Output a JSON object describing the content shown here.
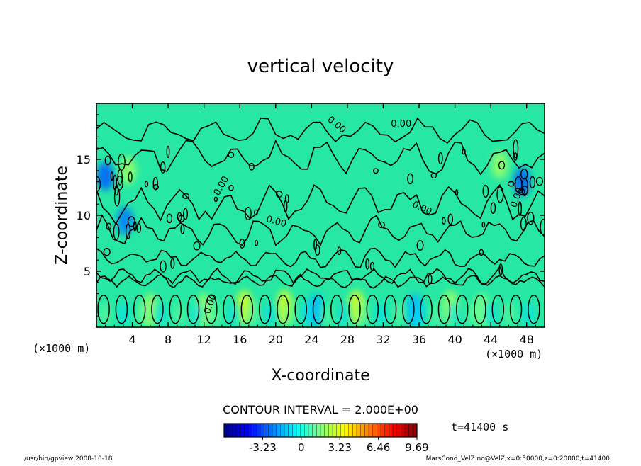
{
  "chart_data": {
    "type": "heatmap",
    "title": "vertical velocity",
    "xlabel": "X-coordinate",
    "ylabel": "Z-coordinate",
    "x_unit": "(×1000 m)",
    "y_unit": "(×1000 m)",
    "xlim": [
      0,
      50
    ],
    "ylim": [
      0,
      20
    ],
    "x_ticks": [
      4,
      8,
      12,
      16,
      20,
      24,
      28,
      32,
      36,
      40,
      44,
      48
    ],
    "y_ticks": [
      5,
      10,
      15
    ],
    "contour_interval_text": "CONTOUR INTERVAL = 2.000E+00",
    "contour_labels": [
      "0.00",
      "0.00",
      "0.00",
      "0.00",
      "0.00",
      "0.00",
      "0.00"
    ],
    "colorbar": {
      "min": -6.46,
      "max": 9.69,
      "tick_values": [
        -3.23,
        0,
        3.23,
        6.46,
        9.69
      ],
      "tick_labels": [
        "-3.23",
        "0",
        "3.23",
        "6.46",
        "9.69"
      ]
    },
    "time_text": "t=41400 s",
    "footer_left": "/usr/bin/gpview  2008-10-18",
    "footer_right": "MarsCond_VelZ.nc@VelZ,x=0:50000,z=0:20000,t=41400",
    "field_features": [
      {
        "x": 1.0,
        "z": 13.5,
        "value": -3.0
      },
      {
        "x": 3.2,
        "z": 9.5,
        "value": -2.5
      },
      {
        "x": 3.5,
        "z": 14.0,
        "value": 2.0
      },
      {
        "x": 47.5,
        "z": 13.0,
        "value": -3.0
      },
      {
        "x": 45.0,
        "z": 14.5,
        "value": 2.0
      },
      {
        "x": 16.5,
        "z": 1.8,
        "value": 3.0
      },
      {
        "x": 21.0,
        "z": 1.8,
        "value": 3.0
      },
      {
        "x": 29.0,
        "z": 1.8,
        "value": 3.0
      },
      {
        "x": 6.0,
        "z": 1.5,
        "value": 2.0
      },
      {
        "x": 12.0,
        "z": 1.5,
        "value": 2.0
      },
      {
        "x": 24.5,
        "z": 1.5,
        "value": -1.5
      },
      {
        "x": 35.5,
        "z": 1.5,
        "value": -1.5
      },
      {
        "x": 39.5,
        "z": 1.8,
        "value": 2.0
      },
      {
        "x": 43.0,
        "z": 1.5,
        "value": 1.5
      }
    ]
  }
}
